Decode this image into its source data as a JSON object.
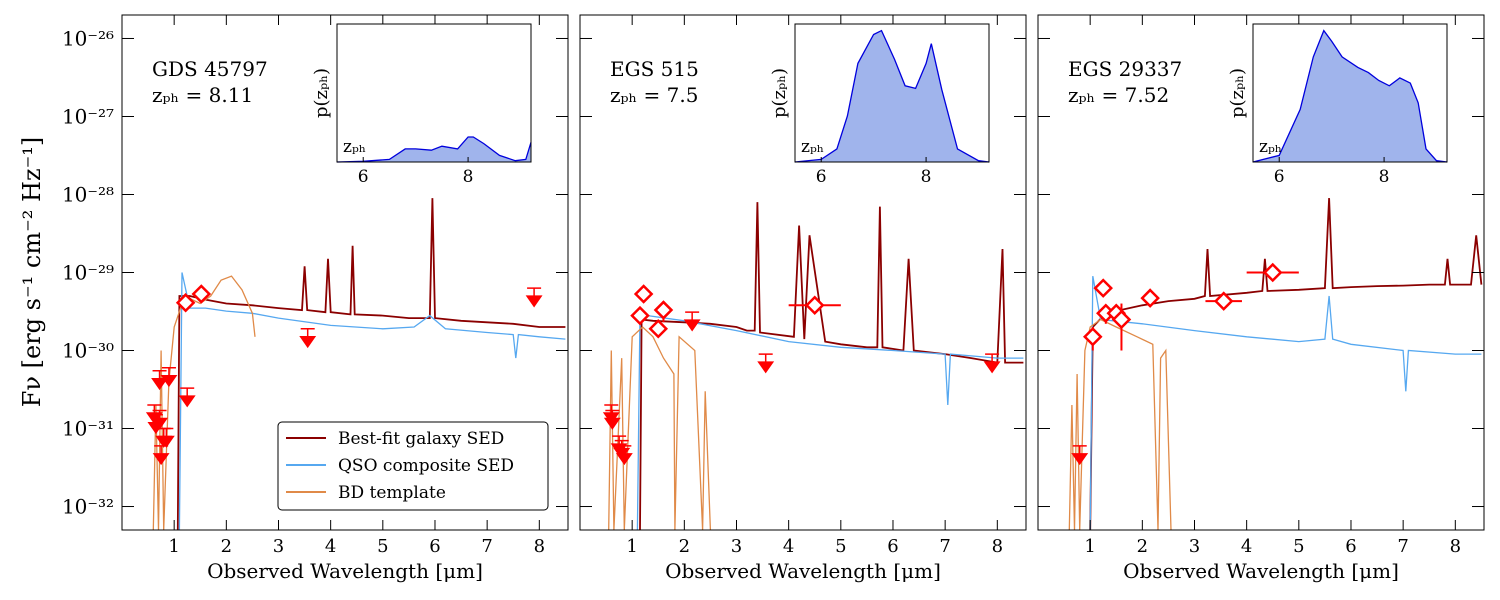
{
  "chart_data": [
    {
      "type": "line",
      "title": "GDS 45797",
      "subtitle": "zₚₕ = 8.11",
      "xlabel": "Observed Wavelength [μm]",
      "ylabel": "Fν  [erg s⁻¹ cm⁻² Hz⁻¹]",
      "log_y": true,
      "legend": "lower right",
      "xlim": [
        0,
        8.55
      ],
      "ylim": [
        5e-33,
        2e-26
      ],
      "xticks": [
        1,
        2,
        3,
        4,
        5,
        6,
        7,
        8
      ],
      "yticks": [
        {
          "value": 1e-32,
          "label": "10⁻³²"
        },
        {
          "value": 1e-31,
          "label": "10⁻³¹"
        },
        {
          "value": 1e-30,
          "label": "10⁻³⁰"
        },
        {
          "value": 1e-29,
          "label": "10⁻²⁹"
        },
        {
          "value": 1e-28,
          "label": "10⁻²⁸"
        },
        {
          "value": 1e-27,
          "label": "10⁻²⁷"
        },
        {
          "value": 1e-26,
          "label": "10⁻²⁶"
        }
      ],
      "series": [
        {
          "name": "Best-fit galaxy SED",
          "color": "#8b0000",
          "x": [
            1.07,
            1.1,
            1.3,
            1.6,
            2.0,
            2.5,
            3.0,
            3.45,
            3.5,
            3.55,
            3.9,
            3.95,
            4.0,
            4.38,
            4.42,
            4.46,
            5.0,
            5.5,
            5.9,
            5.95,
            6.0,
            6.5,
            7.0,
            7.5,
            8.0,
            8.5
          ],
          "values": [
            5e-33,
            5e-30,
            5e-30,
            4.5e-30,
            4e-30,
            3.8e-30,
            3.5e-30,
            3.3e-30,
            1.2e-29,
            3.3e-30,
            3.1e-30,
            1.5e-29,
            3.1e-30,
            2.9e-30,
            2.2e-29,
            2.9e-30,
            2.8e-30,
            2.6e-30,
            2.6e-30,
            9e-29,
            2.6e-30,
            2.4e-30,
            2.3e-30,
            2.2e-30,
            2e-30,
            2e-30
          ]
        },
        {
          "name": "QSO composite SED",
          "color": "#56a8f0",
          "x": [
            1.1,
            1.15,
            1.3,
            1.6,
            2.0,
            2.5,
            3.0,
            4.0,
            5.0,
            5.6,
            5.9,
            6.2,
            7.0,
            7.5,
            7.55,
            7.6,
            8.0,
            8.5
          ],
          "values": [
            5e-33,
            1e-29,
            3.5e-30,
            3.5e-30,
            3.2e-30,
            3e-30,
            2.6e-30,
            2.1e-30,
            1.9e-30,
            2e-30,
            2.8e-30,
            1.9e-30,
            1.7e-30,
            1.6e-30,
            8e-31,
            1.6e-30,
            1.5e-30,
            1.4e-30
          ]
        },
        {
          "name": "BD template",
          "color": "#e08a48",
          "x": [
            0.6,
            0.65,
            0.7,
            0.75,
            0.8,
            0.9,
            1.0,
            1.2,
            1.5,
            1.7,
            1.9,
            2.1,
            2.3,
            2.5,
            2.55
          ],
          "values": [
            5e-33,
            2e-31,
            5e-33,
            1e-30,
            5e-33,
            4e-31,
            2e-30,
            5e-30,
            4e-30,
            5e-30,
            8e-30,
            9e-30,
            6e-30,
            3e-30,
            1.5e-30
          ]
        }
      ],
      "detections": {
        "x": [
          1.22,
          1.52
        ],
        "values": [
          4.1e-30,
          5.3e-30
        ],
        "xerr": [
          0.1,
          0.15
        ],
        "yerr": [
          5e-31,
          6e-31
        ]
      },
      "upper_limits": {
        "x": [
          0.62,
          0.65,
          0.72,
          0.75,
          0.8,
          0.85,
          0.9,
          0.72,
          1.25,
          3.56,
          7.9
        ],
        "values": [
          2e-31,
          1.5e-31,
          1.7e-31,
          6e-32,
          1e-31,
          1e-31,
          6e-31,
          5.5e-31,
          3.3e-31,
          1.9e-30,
          6.3e-30
        ]
      },
      "inset": {
        "ylabel": "p(zₚₕ)",
        "xlabel": "zₚₕ",
        "xlim": [
          5.5,
          9.2
        ],
        "ylim": [
          0,
          1.05
        ],
        "xticks": [
          6,
          8
        ],
        "color": "#a0b4ec",
        "edge": "#0000dd",
        "x": [
          5.5,
          6.0,
          6.5,
          6.8,
          7.0,
          7.3,
          7.5,
          7.8,
          8.0,
          8.1,
          8.3,
          8.6,
          8.9,
          9.1,
          9.2
        ],
        "values": [
          0,
          0.005,
          0.02,
          0.1,
          0.1,
          0.09,
          0.12,
          0.1,
          0.19,
          0.19,
          0.14,
          0.05,
          0.01,
          0.02,
          0.15
        ]
      }
    },
    {
      "type": "line",
      "title": "EGS 515",
      "subtitle": "zₚₕ = 7.5",
      "xlabel": "Observed Wavelength [μm]",
      "log_y": true,
      "xlim": [
        0,
        8.55
      ],
      "ylim": [
        5e-33,
        2e-26
      ],
      "xticks": [
        1,
        2,
        3,
        4,
        5,
        6,
        7,
        8
      ],
      "yticks": [
        1e-32,
        1e-31,
        1e-30,
        1e-29,
        1e-28,
        1e-27,
        1e-26
      ],
      "series": [
        {
          "color": "#8b0000",
          "x": [
            1.15,
            1.18,
            1.4,
            2.0,
            2.5,
            3.0,
            3.2,
            3.35,
            3.4,
            3.45,
            4.1,
            4.2,
            4.3,
            4.4,
            4.7,
            5.0,
            5.5,
            5.7,
            5.75,
            5.8,
            6.2,
            6.3,
            6.4,
            7.0,
            7.5,
            8.0,
            8.1,
            8.15,
            8.5
          ],
          "values": [
            5e-33,
            2.5e-30,
            2.4e-30,
            2.3e-30,
            2.2e-30,
            2e-30,
            1.8e-30,
            1.8e-30,
            8e-29,
            1.7e-30,
            1.5e-30,
            4e-29,
            1.4e-30,
            3e-29,
            1.3e-30,
            1.2e-30,
            1.1e-30,
            1.1e-30,
            7e-29,
            1.1e-30,
            1e-30,
            1.5e-29,
            1e-30,
            9e-31,
            8e-31,
            7e-31,
            2e-29,
            7e-31,
            7e-31
          ]
        },
        {
          "color": "#56a8f0",
          "x": [
            1.1,
            1.15,
            1.3,
            2.0,
            3.0,
            4.0,
            5.0,
            6.0,
            7.0,
            7.05,
            7.1,
            8.0,
            8.5
          ],
          "values": [
            5e-33,
            3e-30,
            2.8e-30,
            2.4e-30,
            1.8e-30,
            1.3e-30,
            1.1e-30,
            1e-30,
            9e-31,
            2e-31,
            9e-31,
            8e-31,
            8e-31
          ]
        },
        {
          "color": "#e08a48",
          "x": [
            0.55,
            0.6,
            0.65,
            0.8,
            0.85,
            1.0,
            1.2,
            1.4,
            1.6,
            1.8,
            1.82,
            1.9,
            2.2,
            2.35,
            2.4,
            2.5
          ],
          "values": [
            5e-33,
            1e-30,
            5e-33,
            8e-31,
            5e-33,
            1.5e-30,
            2e-30,
            1.5e-30,
            8e-31,
            5e-31,
            5e-33,
            1.5e-30,
            1e-30,
            5e-33,
            3e-31,
            5e-33
          ]
        }
      ],
      "detections": {
        "x": [
          1.15,
          1.22,
          1.5,
          1.6,
          4.5
        ],
        "values": [
          2.8e-30,
          5.3e-30,
          1.9e-30,
          3.3e-30,
          3.8e-30
        ],
        "xerr": [
          0.1,
          0.1,
          0.1,
          0.15,
          0.5
        ],
        "yerr": [
          3e-31,
          6e-31,
          3e-31,
          1e-30,
          3e-31
        ]
      },
      "upper_limits": {
        "x": [
          0.6,
          0.62,
          0.75,
          0.8,
          0.85,
          2.15,
          3.56,
          7.9
        ],
        "values": [
          2e-31,
          1.7e-31,
          8e-32,
          7e-32,
          6e-32,
          3.1e-30,
          9e-31,
          9e-31
        ]
      },
      "inset": {
        "ylabel": "p(zₚₕ)",
        "xlabel": "zₚₕ",
        "xlim": [
          5.5,
          9.2
        ],
        "ylim": [
          0,
          1.05
        ],
        "xticks": [
          6,
          8
        ],
        "color": "#a0b4ec",
        "edge": "#0000dd",
        "x": [
          5.5,
          6.0,
          6.3,
          6.5,
          6.7,
          7.0,
          7.15,
          7.4,
          7.6,
          7.8,
          8.0,
          8.1,
          8.3,
          8.6,
          9.0,
          9.2
        ],
        "values": [
          0,
          0.02,
          0.1,
          0.35,
          0.75,
          0.97,
          1.0,
          0.78,
          0.58,
          0.56,
          0.75,
          0.9,
          0.55,
          0.1,
          0.01,
          0
        ]
      }
    },
    {
      "type": "line",
      "title": "EGS 29337",
      "subtitle": "zₚₕ = 7.52",
      "xlabel": "Observed Wavelength [μm]",
      "log_y": true,
      "xlim": [
        0,
        8.55
      ],
      "ylim": [
        5e-33,
        2e-26
      ],
      "xticks": [
        1,
        2,
        3,
        4,
        5,
        6,
        7,
        8
      ],
      "yticks": [
        1e-32,
        1e-31,
        1e-30,
        1e-29,
        1e-28,
        1e-27,
        1e-26
      ],
      "series": [
        {
          "color": "#8b0000",
          "x": [
            1.0,
            1.05,
            1.3,
            2.0,
            2.5,
            3.0,
            3.2,
            3.25,
            3.3,
            4.0,
            4.3,
            4.35,
            4.4,
            5.0,
            5.5,
            5.58,
            5.65,
            6.0,
            6.5,
            7.0,
            7.5,
            7.8,
            7.85,
            7.9,
            8.3,
            8.4,
            8.5
          ],
          "values": [
            5e-33,
            2e-30,
            3e-30,
            3.8e-30,
            4.3e-30,
            4.6e-30,
            5e-30,
            2e-29,
            5e-30,
            5.5e-30,
            5.8e-30,
            1.5e-29,
            5.8e-30,
            6e-30,
            6.3e-30,
            9e-29,
            6.3e-30,
            6.5e-30,
            6.7e-30,
            6.8e-30,
            7e-30,
            7e-30,
            1.5e-29,
            7e-30,
            7e-30,
            3e-29,
            7e-30
          ]
        },
        {
          "color": "#56a8f0",
          "x": [
            1.0,
            1.05,
            1.2,
            2.0,
            3.0,
            4.0,
            5.0,
            5.5,
            5.58,
            5.65,
            6.0,
            7.0,
            7.05,
            7.1,
            8.0,
            8.5
          ],
          "values": [
            5e-33,
            9e-30,
            2.5e-30,
            2.2e-30,
            1.8e-30,
            1.5e-30,
            1.3e-30,
            1.4e-30,
            5e-30,
            1.4e-30,
            1.2e-30,
            1e-30,
            3e-31,
            1e-30,
            9e-31,
            9e-31
          ]
        },
        {
          "color": "#e08a48",
          "x": [
            0.6,
            0.65,
            0.7,
            0.75,
            0.8,
            0.9,
            1.0,
            1.2,
            1.5,
            1.9,
            2.2,
            2.3,
            2.35,
            2.45,
            2.55
          ],
          "values": [
            5e-33,
            2e-31,
            5e-33,
            5e-31,
            5e-33,
            1e-30,
            2e-30,
            2.5e-30,
            2e-30,
            1.5e-30,
            1.2e-30,
            5e-33,
            8e-31,
            1e-30,
            5e-33
          ]
        }
      ],
      "detections": {
        "x": [
          1.05,
          1.25,
          1.3,
          1.5,
          1.6,
          2.15,
          3.56,
          4.5
        ],
        "values": [
          1.5e-30,
          6.3e-30,
          3e-30,
          3e-30,
          2.5e-30,
          4.7e-30,
          4.3e-30,
          1e-29
        ],
        "xerr": [
          0.1,
          0.1,
          0.15,
          0.1,
          0.15,
          0.15,
          0.35,
          0.5
        ],
        "yerr": [
          5e-31,
          8e-31,
          8e-31,
          5e-31,
          1.5e-30,
          1e-30,
          4e-31,
          8e-31
        ]
      },
      "upper_limits": {
        "x": [
          0.8
        ],
        "values": [
          6e-32
        ]
      },
      "inset": {
        "ylabel": "p(zₚₕ)",
        "xlabel": "zₚₕ",
        "xlim": [
          5.5,
          9.2
        ],
        "ylim": [
          0,
          1.05
        ],
        "xticks": [
          6,
          8
        ],
        "color": "#a0b4ec",
        "edge": "#0000dd",
        "x": [
          5.5,
          6.0,
          6.4,
          6.65,
          6.85,
          7.0,
          7.2,
          7.5,
          7.7,
          7.9,
          8.1,
          8.3,
          8.5,
          8.65,
          8.8,
          9.0,
          9.2
        ],
        "values": [
          0,
          0.05,
          0.4,
          0.8,
          1.0,
          0.92,
          0.8,
          0.72,
          0.68,
          0.62,
          0.58,
          0.64,
          0.6,
          0.45,
          0.1,
          0.01,
          0
        ]
      }
    }
  ]
}
